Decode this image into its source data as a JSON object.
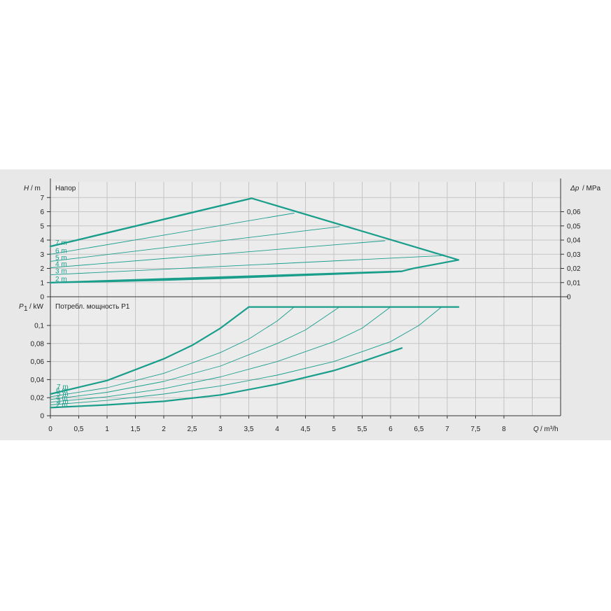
{
  "colors": {
    "curve": "#1a9e8c",
    "grid": "#c4c4c4",
    "panel": "#e8e8e8",
    "plot": "#ececec",
    "axis": "#333333"
  },
  "chart_data": [
    {
      "type": "line",
      "title": "Напор",
      "ylabel_symbol": "H",
      "ylabel_unit": "/ m",
      "y2label_symbol": "Δp",
      "y2label_unit": "/ MPa",
      "xlim": [
        0,
        9
      ],
      "ylim": [
        0,
        7.5
      ],
      "y_ticks": [
        "0",
        "1",
        "2",
        "3",
        "4",
        "5",
        "6",
        "7"
      ],
      "y2_ticks": [
        "0",
        "0,01",
        "0,02",
        "0,03",
        "0,04",
        "0,05",
        "0,06"
      ],
      "grid": true,
      "envelope": {
        "x": [
          0,
          3.55,
          7.2,
          6.4,
          6.2,
          0
        ],
        "y": [
          3.55,
          6.95,
          2.6,
          2.0,
          1.8,
          1.0
        ]
      },
      "series": [
        {
          "name": "7 m",
          "x": [
            0,
            3.55
          ],
          "y": [
            3.55,
            6.95
          ],
          "bold": true
        },
        {
          "name": "6 m",
          "x": [
            0,
            4.3
          ],
          "y": [
            3.0,
            5.9
          ],
          "bold": false
        },
        {
          "name": "5 m",
          "x": [
            0,
            5.1
          ],
          "y": [
            2.5,
            4.95
          ],
          "bold": false
        },
        {
          "name": "4 m",
          "x": [
            0,
            5.9
          ],
          "y": [
            2.05,
            3.95
          ],
          "bold": false
        },
        {
          "name": "3 m",
          "x": [
            0,
            6.9
          ],
          "y": [
            1.55,
            2.9
          ],
          "bold": false
        },
        {
          "name": "2 m",
          "x": [
            0,
            1,
            2,
            3,
            4,
            5,
            6,
            6.2
          ],
          "y": [
            1.0,
            1.08,
            1.18,
            1.3,
            1.45,
            1.6,
            1.75,
            1.8
          ],
          "bold": true
        }
      ]
    },
    {
      "type": "line",
      "title": "Потребл. мощность P1",
      "ylabel_symbol": "P",
      "ylabel_sub": "1",
      "ylabel_unit": "/ kW",
      "xlabel_symbol": "Q",
      "xlabel_unit": "/ m³/h",
      "xlim": [
        0,
        9
      ],
      "ylim": [
        0,
        0.125
      ],
      "x_ticks": [
        "0",
        "0,5",
        "1",
        "1,5",
        "2",
        "2,5",
        "3",
        "3,5",
        "4",
        "4,5",
        "5",
        "5,5",
        "6",
        "6,5",
        "7",
        "7,5",
        "8"
      ],
      "y_ticks": [
        "0",
        "0,02",
        "0,04",
        "0,06",
        "0,08",
        "0,1"
      ],
      "grid": true,
      "cap": {
        "x": [
          3.5,
          7.2
        ],
        "y": [
          0.1205,
          0.1205
        ]
      },
      "series": [
        {
          "name": "7 m",
          "x": [
            0,
            1,
            2,
            2.5,
            3,
            3.5
          ],
          "y": [
            0.024,
            0.039,
            0.063,
            0.078,
            0.097,
            0.1205
          ],
          "bold": true
        },
        {
          "name": "6 m",
          "x": [
            0,
            1,
            2,
            3,
            3.5,
            4,
            4.3
          ],
          "y": [
            0.021,
            0.031,
            0.047,
            0.07,
            0.085,
            0.105,
            0.1205
          ],
          "bold": false
        },
        {
          "name": "5 m",
          "x": [
            0,
            1,
            2,
            3,
            4,
            4.5,
            5.1
          ],
          "y": [
            0.018,
            0.026,
            0.038,
            0.055,
            0.08,
            0.095,
            0.1205
          ],
          "bold": false
        },
        {
          "name": "4 m",
          "x": [
            0,
            1,
            2,
            3,
            4,
            5,
            5.5,
            6.0
          ],
          "y": [
            0.015,
            0.021,
            0.03,
            0.043,
            0.06,
            0.082,
            0.097,
            0.1205
          ],
          "bold": false
        },
        {
          "name": "3 m",
          "x": [
            0,
            1,
            2,
            3,
            4,
            5,
            6,
            6.5,
            6.9
          ],
          "y": [
            0.012,
            0.017,
            0.024,
            0.033,
            0.045,
            0.06,
            0.082,
            0.1,
            0.1205
          ],
          "bold": false
        },
        {
          "name": "2 m",
          "x": [
            0,
            1,
            2,
            3,
            4,
            5,
            5.5,
            6.2
          ],
          "y": [
            0.009,
            0.012,
            0.016,
            0.023,
            0.035,
            0.05,
            0.06,
            0.075
          ],
          "bold": true
        }
      ]
    }
  ]
}
